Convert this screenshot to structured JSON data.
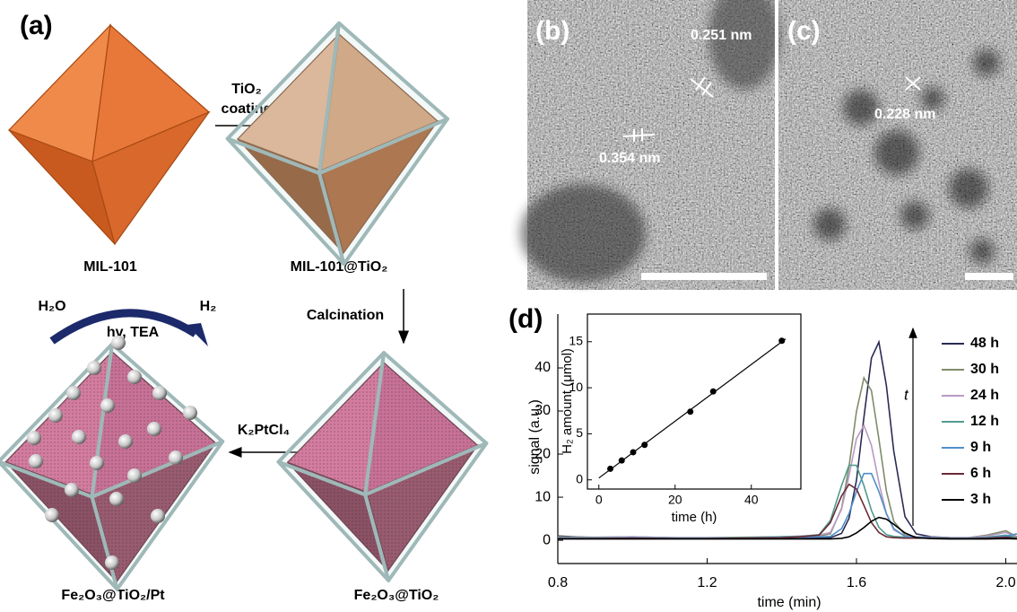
{
  "panel_a": {
    "label": "(a)",
    "structures": [
      "MIL-101",
      "MIL-101@TiO₂",
      "Fe₂O₃@TiO₂",
      "Fe₂O₃@TiO₂/Pt"
    ],
    "steps": [
      [
        "TiO₂",
        "coating"
      ],
      "Calcination",
      "K₂PtCl₄"
    ],
    "reaction": {
      "reactant": "H₂O",
      "product": "H₂",
      "conditions": "hv, TEA"
    }
  },
  "panel_b": {
    "label": "(b)",
    "lattice_spacings": [
      "0.251 nm",
      "0.354 nm"
    ]
  },
  "panel_c": {
    "label": "(c)",
    "lattice_spacings": [
      "0.228 nm"
    ]
  },
  "chart_data": [
    {
      "type": "line",
      "label": "(d)",
      "xlabel": "time (min)",
      "ylabel": "signal (a.u.)",
      "annotation": "t",
      "xlim": [
        0.8,
        2.03
      ],
      "ylim": [
        -5.4,
        52.5
      ],
      "xticks": [
        0.8,
        1.2,
        1.6,
        {
          "value": 2,
          "label": "2.0"
        }
      ],
      "yticks": [
        0,
        10,
        20,
        30,
        40
      ],
      "x": [
        0.8,
        0.9,
        1.0,
        1.1,
        1.2,
        1.3,
        1.4,
        1.45,
        1.5,
        1.53,
        1.56,
        1.58,
        1.6,
        1.62,
        1.64,
        1.66,
        1.68,
        1.7,
        1.73,
        1.76,
        1.8,
        1.85,
        1.9,
        1.95,
        2.0,
        2.03
      ],
      "series": [
        {
          "name": "48 h",
          "color": "#2b2b55",
          "values": [
            1.0,
            0.6,
            0.7,
            0.6,
            0.5,
            0.5,
            0.6,
            0.6,
            0.6,
            0.6,
            1.6,
            5.1,
            13.9,
            28.5,
            42.3,
            46,
            36,
            20.7,
            5.5,
            1.5,
            0.8,
            0.6,
            0.5,
            0.6,
            0.9,
            0.5
          ]
        },
        {
          "name": "30 h",
          "color": "#7f8c6a",
          "values": [
            0.8,
            0.7,
            0.8,
            0.6,
            0.6,
            0.7,
            0.8,
            0.9,
            1.0,
            1.5,
            7.4,
            17.1,
            29.9,
            37.7,
            34.7,
            23.5,
            11.5,
            4.4,
            1.2,
            0.8,
            0.7,
            0.6,
            0.6,
            1.2,
            2.2,
            0.8
          ]
        },
        {
          "name": "24 h",
          "color": "#b89ac2",
          "values": [
            0.7,
            0.6,
            0.8,
            0.6,
            0.6,
            0.6,
            0.8,
            1.0,
            1.2,
            1.8,
            7.2,
            15,
            23.6,
            26.7,
            22,
            13.4,
            6.2,
            2.4,
            1.0,
            0.8,
            0.7,
            0.6,
            0.6,
            1.0,
            1.8,
            0.7
          ]
        },
        {
          "name": "12 h",
          "color": "#4f9b8e",
          "values": [
            0.6,
            0.5,
            0.6,
            0.5,
            0.5,
            0.6,
            0.8,
            0.9,
            1.3,
            4.6,
            12.7,
            17.4,
            17.4,
            12.7,
            6.9,
            3.0,
            1.3,
            0.9,
            0.7,
            0.6,
            0.6,
            0.5,
            0.5,
            0.7,
            1.2,
            0.6
          ]
        },
        {
          "name": "9 h",
          "color": "#4f8fc8",
          "values": [
            0.5,
            0.5,
            0.6,
            0.5,
            0.5,
            0.5,
            0.7,
            0.7,
            0.8,
            0.9,
            2.7,
            6.2,
            11.3,
            15.5,
            15.5,
            11.3,
            6.2,
            2.7,
            0.9,
            0.7,
            0.6,
            0.5,
            0.5,
            0.6,
            1.0,
            1.5
          ]
        },
        {
          "name": "6 h",
          "color": "#6b2b35",
          "values": [
            0.4,
            0.4,
            0.5,
            0.4,
            0.4,
            0.5,
            0.6,
            0.8,
            1.2,
            4.1,
            10.3,
            13,
            11.9,
            8.1,
            4.1,
            1.8,
            0.8,
            0.6,
            0.5,
            0.5,
            0.5,
            0.4,
            0.4,
            0.5,
            0.7,
            0.4
          ]
        },
        {
          "name": "3 h",
          "color": "#000000",
          "values": [
            0.3,
            0.3,
            0.3,
            0.3,
            0.3,
            0.3,
            0.3,
            0.3,
            0.3,
            0.3,
            0.45,
            0.8,
            1.7,
            2.95,
            4.4,
            5.3,
            4.9,
            3.7,
            1.7,
            0.6,
            0.4,
            0.3,
            0.3,
            0.3,
            0.4,
            0.3
          ]
        }
      ]
    },
    {
      "type": "scatter",
      "xlabel": "time (h)",
      "ylabel": "H₂ amount (μmol)",
      "color": "#000000",
      "xlim": [
        -3,
        53
      ],
      "ylim": [
        -1,
        18
      ],
      "xticks": [
        0,
        20,
        40
      ],
      "yticks": [
        0,
        5,
        10,
        15
      ],
      "x": [
        3,
        6,
        9,
        12,
        24,
        30,
        48
      ],
      "values": [
        1.2,
        2.1,
        3.0,
        3.8,
        7.4,
        9.6,
        15.1
      ],
      "fit_line": {
        "x": [
          0,
          49
        ],
        "values": [
          0.2,
          15.3
        ]
      }
    }
  ]
}
